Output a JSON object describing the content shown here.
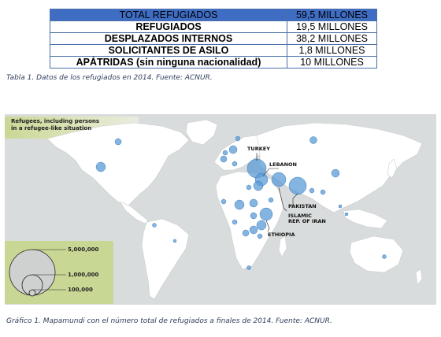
{
  "table": {
    "rows": [
      {
        "label": "TOTAL REFUGIADOS",
        "value": "59,5 MILLONES"
      },
      {
        "label": "REFUGIADOS",
        "value": "19,5 MILLONES"
      },
      {
        "label": "DESPLAZADOS INTERNOS",
        "value": "38,2 MILLONES"
      },
      {
        "label": "SOLICITANTES DE ASILO",
        "value": "1,8 MILLONES"
      },
      {
        "label": "APÁTRIDAS (sin ninguna nacionalidad)",
        "value": "10 MILLONES"
      }
    ],
    "caption": "Tabla 1. Datos de los refugiados en 2014. Fuente: ACNUR."
  },
  "map": {
    "legend_title_line1": "Refugees, including persons",
    "legend_title_line2": "in a refugee-like situation",
    "scale": [
      "5,000,000",
      "1,000,000",
      "100,000"
    ],
    "labels": {
      "turkey": "TURKEY",
      "lebanon": "LEBANON",
      "pakistan": "PAKISTAN",
      "iran_line1": "ISLAMIC",
      "iran_line2": "REP. OF IRAN",
      "ethiopia": "ETHIOPIA"
    },
    "colors": {
      "land": "#ffffff",
      "sea": "#d9dcdc",
      "bubble": "#5b9bd5",
      "legend": "#c9d795"
    },
    "caption": "Gráfico 1. Mapamundi con el número total de refugiados a finales de 2014. Fuente: ACNUR."
  }
}
